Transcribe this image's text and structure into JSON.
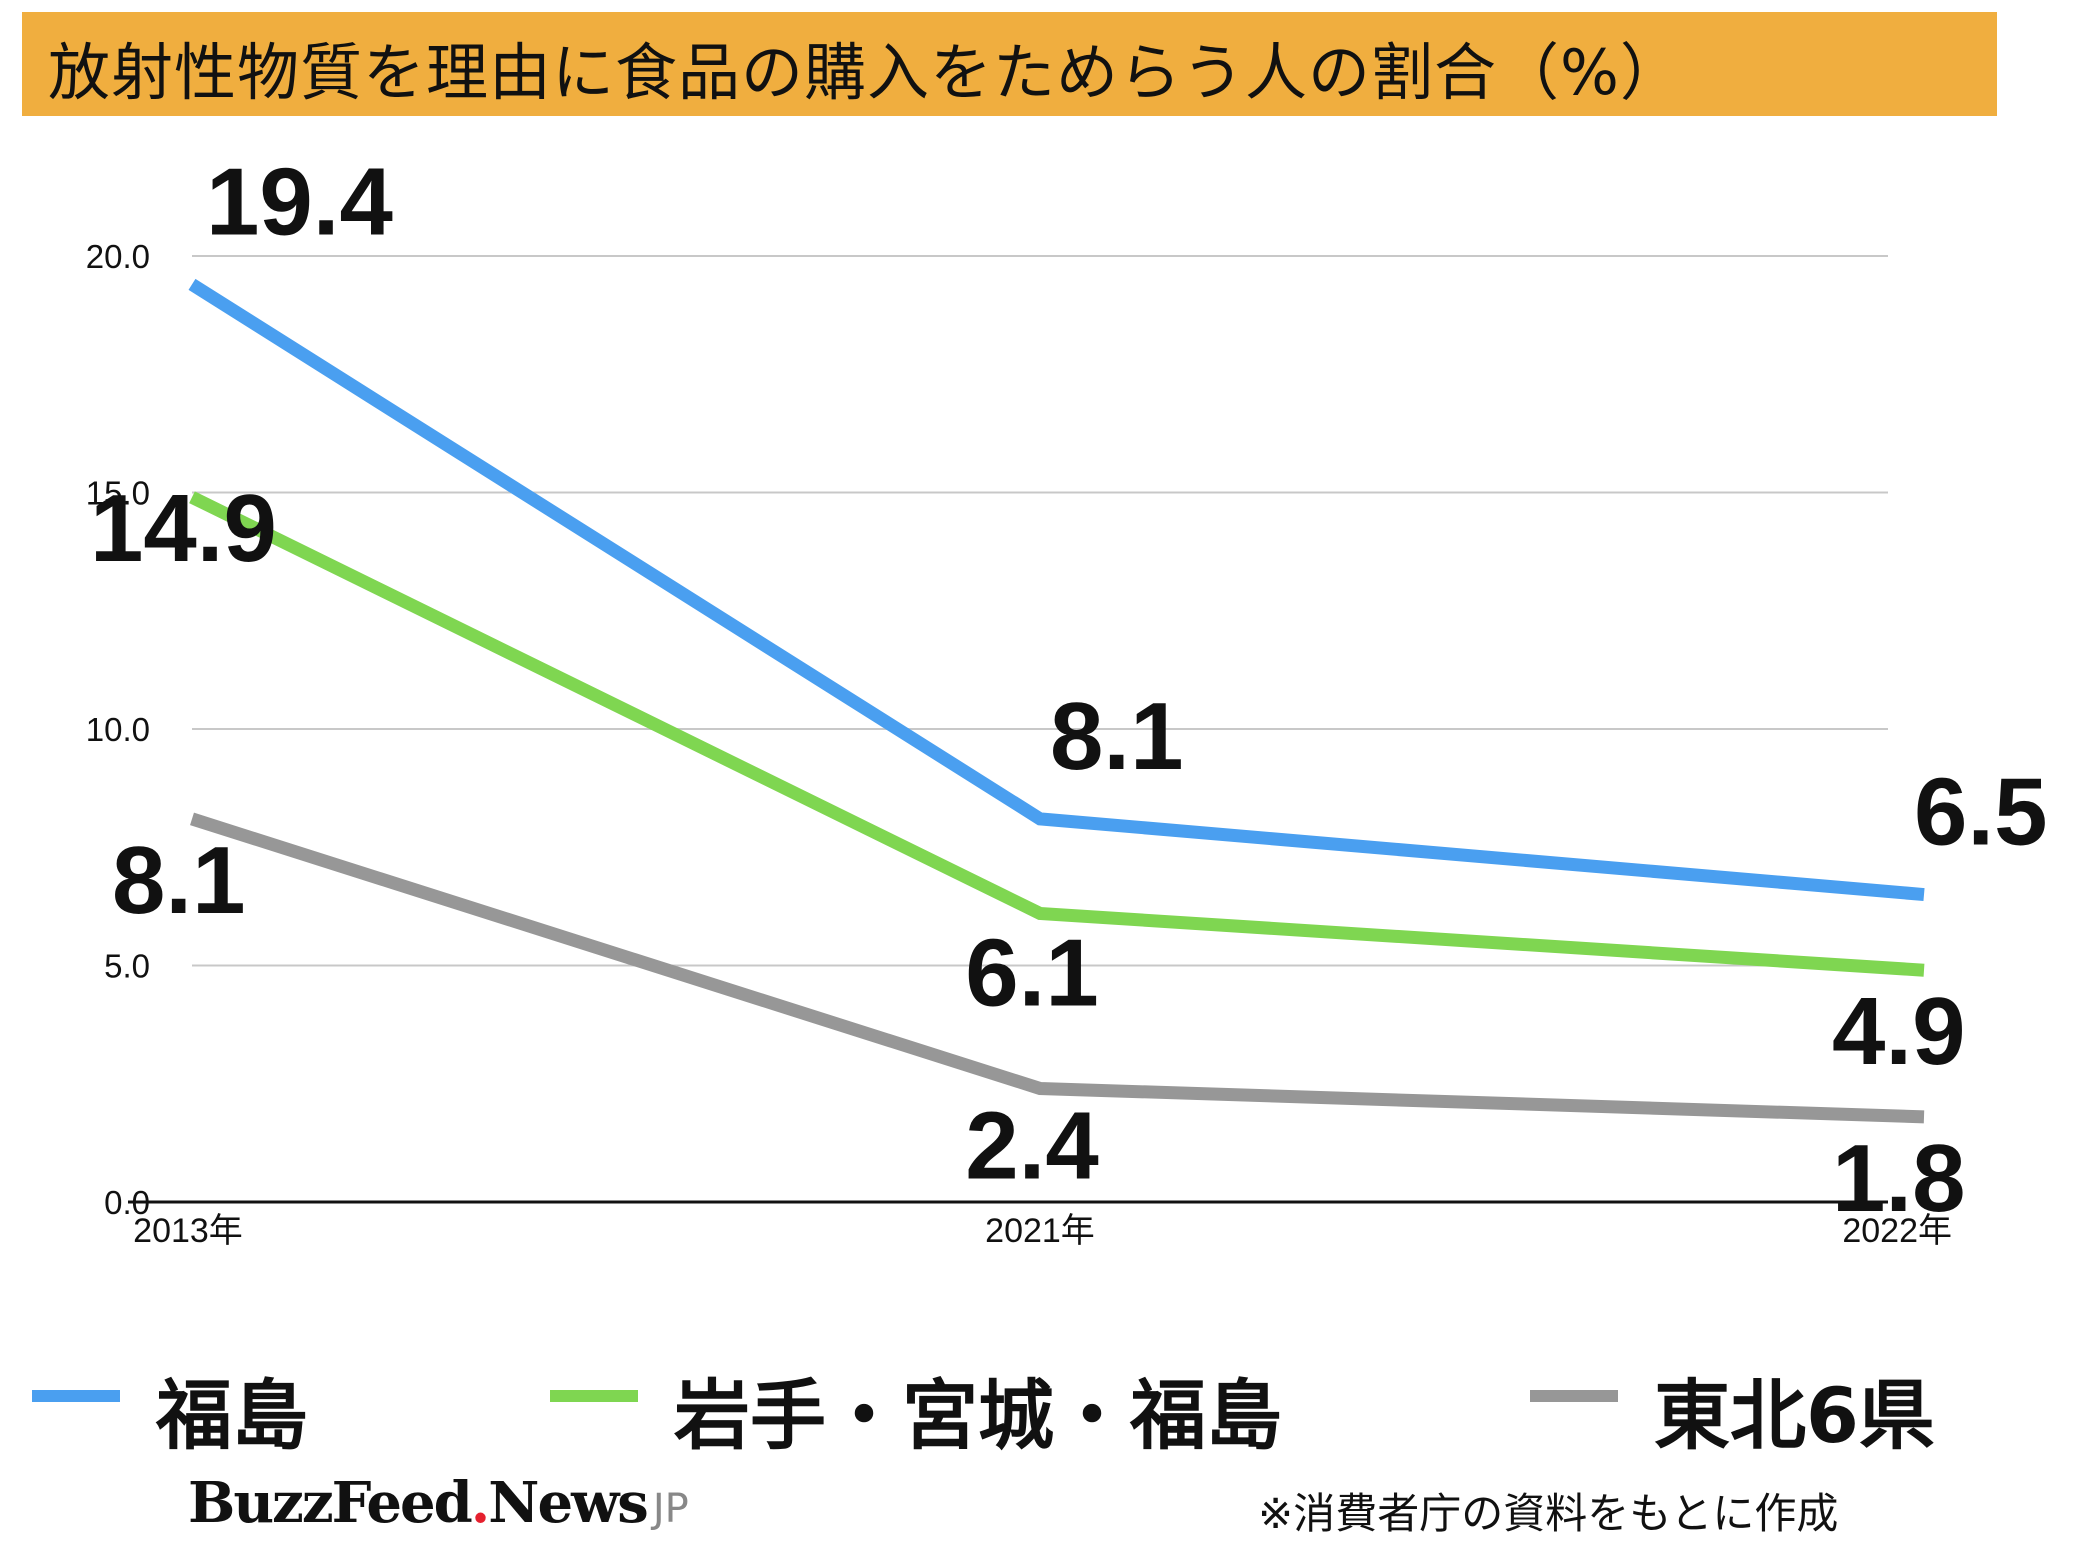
{
  "title": "放射性物質を理由に食品の購入をためらう人の割合（%）",
  "chart_data": {
    "type": "line",
    "title": "放射性物質を理由に食品の購入をためらう人の割合（%）",
    "categories": [
      "2013年",
      "2021年",
      "2022年"
    ],
    "yticks": [
      "0.0",
      "5.0",
      "10.0",
      "15.0",
      "20.0"
    ],
    "ylim": [
      0,
      20
    ],
    "grid": true,
    "legend_position": "bottom",
    "series": [
      {
        "name": "福島",
        "color": "#4a9ff0",
        "values": [
          19.4,
          8.1,
          6.5
        ],
        "labels": [
          "19.4",
          "8.1",
          "6.5"
        ]
      },
      {
        "name": "岩手・宮城・福島",
        "color": "#7fd651",
        "values": [
          14.9,
          6.1,
          4.9
        ],
        "labels": [
          "14.9",
          "6.1",
          "4.9"
        ]
      },
      {
        "name": "東北6県",
        "color": "#979797",
        "values": [
          8.1,
          2.4,
          1.8
        ],
        "labels": [
          "8.1",
          "2.4",
          "1.8"
        ]
      }
    ]
  },
  "footer": {
    "logo_main": "BuzzFeed",
    "logo_dot": ".",
    "logo_news": "News",
    "logo_suffix": "JP",
    "source_note": "※消費者庁の資料をもとに作成"
  }
}
